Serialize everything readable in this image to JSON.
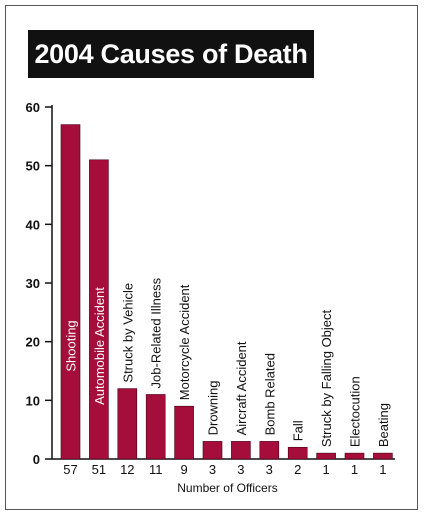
{
  "chart_data": {
    "type": "bar",
    "title": "2004 Causes of Death",
    "xlabel": "Number of Officers",
    "ylabel": "",
    "ylim": [
      0,
      60
    ],
    "yticks": [
      0,
      10,
      20,
      30,
      40,
      50,
      60
    ],
    "grid": false,
    "bar_color": "#a50d3a",
    "categories": [
      "Shooting",
      "Automobile Accident",
      "Struck by Vehicle",
      "Job-Related Illness",
      "Motorcycle Accident",
      "Drowning",
      "Aircraft Accident",
      "Bomb Related",
      "Fall",
      "Struck by Falling Object",
      "Electocution",
      "Beating"
    ],
    "values": [
      57,
      51,
      12,
      11,
      9,
      3,
      3,
      3,
      2,
      1,
      1,
      1
    ],
    "value_labels": [
      "57",
      "51",
      "12",
      "11",
      "9",
      "3",
      "3",
      "3",
      "2",
      "1",
      "1",
      "1"
    ]
  }
}
